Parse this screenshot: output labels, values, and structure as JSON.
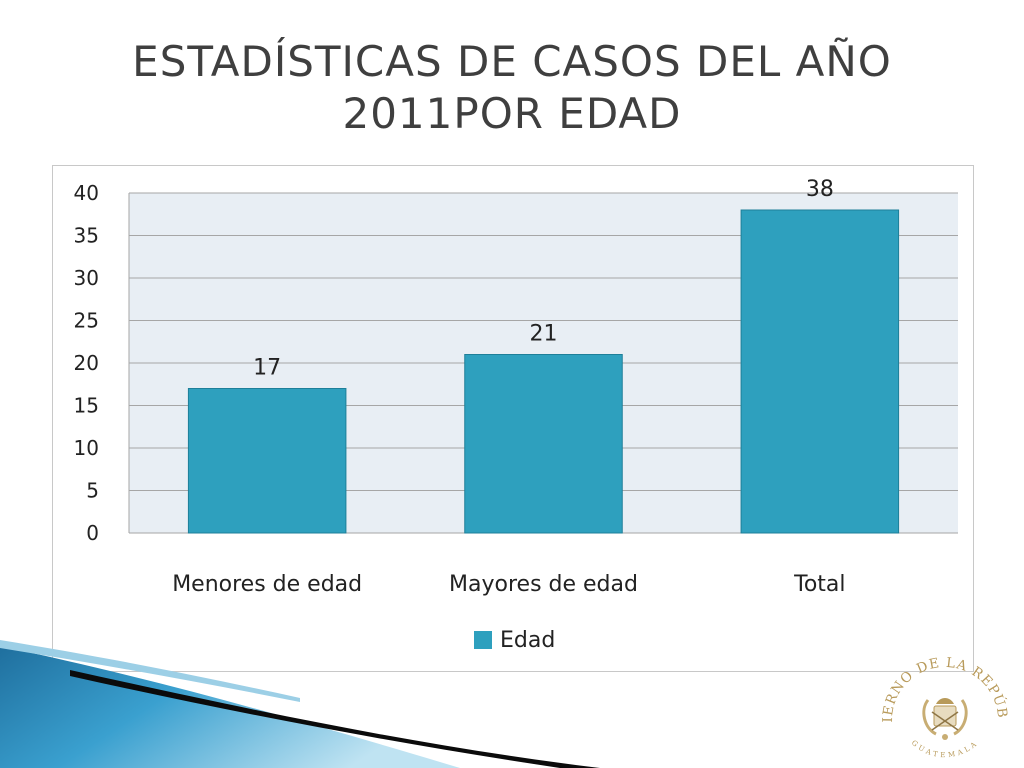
{
  "slide": {
    "title_line1": "ESTADÍSTICAS DE CASOS DEL AÑO",
    "title_line2": "2011POR EDAD"
  },
  "chart_data": {
    "type": "bar",
    "categories": [
      "Menores de edad",
      "Mayores de edad",
      "Total"
    ],
    "series": [
      {
        "name": "Edad",
        "values": [
          17,
          21,
          38
        ]
      }
    ],
    "ylim": [
      0,
      40
    ],
    "yticks": [
      0,
      5,
      10,
      15,
      20,
      25,
      30,
      35,
      40
    ],
    "grid": true,
    "legend_position": "bottom",
    "data_labels": true,
    "colors": {
      "bar": "#2ea0be",
      "plot_bg": "#e8eef4",
      "grid": "#a6a6a6",
      "text": "#222222"
    }
  },
  "seal": {
    "text": "GOBIERNO DE LA REPÚBLICA",
    "subtext": "GUATEMALA",
    "icon": "government-seal-icon",
    "color": "#b89a5a"
  },
  "decoration": {
    "swoosh_colors": [
      "#1f6f9e",
      "#3aa0cf",
      "#0b0b0b"
    ]
  }
}
